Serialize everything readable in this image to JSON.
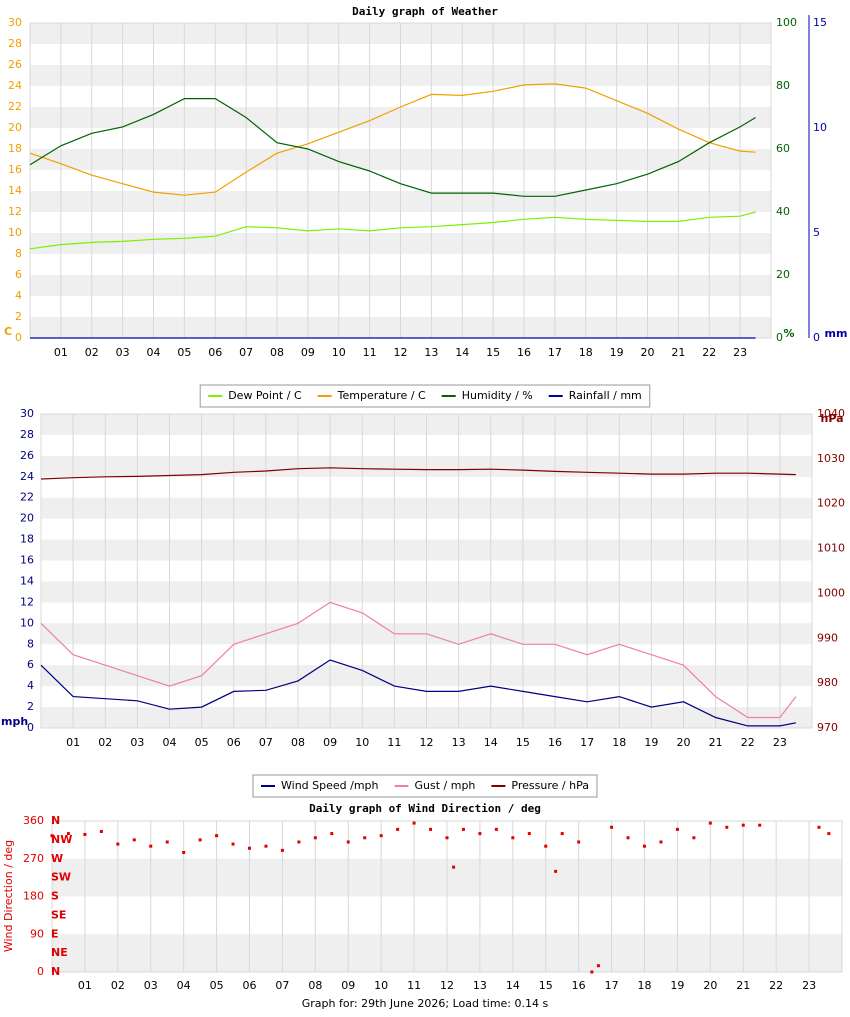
{
  "footer": "Graph for: 29th June 2026; Load time: 0.14 s",
  "chart_data": [
    {
      "type": "line",
      "title": "Daily graph of Weather",
      "x": [
        0,
        1,
        2,
        3,
        4,
        5,
        6,
        7,
        8,
        9,
        10,
        11,
        12,
        13,
        14,
        15,
        16,
        17,
        18,
        19,
        20,
        21,
        22,
        23,
        23.5
      ],
      "xlim": [
        0,
        24
      ],
      "xticks": [
        {
          "value": 1,
          "label": "01"
        },
        {
          "value": 2,
          "label": "02"
        },
        {
          "value": 3,
          "label": "03"
        },
        {
          "value": 4,
          "label": "04"
        },
        {
          "value": 5,
          "label": "05"
        },
        {
          "value": 6,
          "label": "06"
        },
        {
          "value": 7,
          "label": "07"
        },
        {
          "value": 8,
          "label": "08"
        },
        {
          "value": 9,
          "label": "09"
        },
        {
          "value": 10,
          "label": "10"
        },
        {
          "value": 11,
          "label": "11"
        },
        {
          "value": 12,
          "label": "12"
        },
        {
          "value": 13,
          "label": "13"
        },
        {
          "value": 14,
          "label": "14"
        },
        {
          "value": 15,
          "label": "15"
        },
        {
          "value": 16,
          "label": "16"
        },
        {
          "value": 17,
          "label": "17"
        },
        {
          "value": 18,
          "label": "18"
        },
        {
          "value": 19,
          "label": "19"
        },
        {
          "value": 20,
          "label": "20"
        },
        {
          "value": 21,
          "label": "21"
        },
        {
          "value": 22,
          "label": "22"
        },
        {
          "value": 23,
          "label": "23"
        }
      ],
      "ylim": [
        0,
        30
      ],
      "yticks": [
        0,
        2,
        4,
        6,
        8,
        10,
        12,
        14,
        16,
        18,
        20,
        22,
        24,
        26,
        28,
        30
      ],
      "ylabel": "C",
      "ycolor": "#f0a000",
      "y2lim": [
        0,
        100
      ],
      "y2ticks": [
        0,
        20,
        40,
        60,
        80,
        100
      ],
      "y2label": "%",
      "y2color": "#006400",
      "y3lim": [
        0,
        15
      ],
      "y3ticks": [
        0,
        5,
        10,
        15
      ],
      "y3label": "mm",
      "y3color": "#0000aa",
      "grid": true,
      "series": [
        {
          "name": "Dew Point / C",
          "color": "#7cf000",
          "values": [
            8.5,
            8.9,
            9.1,
            9.2,
            9.4,
            9.5,
            9.7,
            10.6,
            10.5,
            10.2,
            10.4,
            10.2,
            10.5,
            10.6,
            10.8,
            11,
            11.3,
            11.5,
            11.3,
            11.2,
            11.1,
            11.1,
            11.5,
            11.6,
            12
          ]
        },
        {
          "name": "Temperature / C",
          "color": "#f0a000",
          "values": [
            17.6,
            16.6,
            15.5,
            14.7,
            13.9,
            13.6,
            13.9,
            15.8,
            17.6,
            18.5,
            19.6,
            20.7,
            22,
            23.2,
            23.1,
            23.5,
            24.1,
            24.2,
            23.8,
            22.6,
            21.4,
            19.9,
            18.6,
            17.8,
            17.7
          ]
        },
        {
          "name": "Humidity / %",
          "color": "#006400",
          "axis": "y2",
          "values": [
            55,
            61,
            65,
            67,
            71,
            76,
            76,
            70,
            62,
            60,
            56,
            53,
            49,
            46,
            46,
            46,
            45,
            45,
            47,
            49,
            52,
            56,
            62,
            67,
            70
          ]
        },
        {
          "name": "Rainfall / mm",
          "color": "#0000aa",
          "axis": "y3",
          "values": [
            0,
            0,
            0,
            0,
            0,
            0,
            0,
            0,
            0,
            0,
            0,
            0,
            0,
            0,
            0,
            0,
            0,
            0,
            0,
            0,
            0,
            0,
            0,
            0,
            0
          ]
        }
      ]
    },
    {
      "type": "line",
      "x": [
        0,
        1,
        2,
        3,
        4,
        5,
        6,
        7,
        8,
        9,
        10,
        11,
        12,
        13,
        14,
        15,
        16,
        17,
        18,
        19,
        20,
        21,
        22,
        23,
        23.5
      ],
      "xlim": [
        0,
        24
      ],
      "xticks": [
        {
          "value": 1,
          "label": "01"
        },
        {
          "value": 2,
          "label": "02"
        },
        {
          "value": 3,
          "label": "03"
        },
        {
          "value": 4,
          "label": "04"
        },
        {
          "value": 5,
          "label": "05"
        },
        {
          "value": 6,
          "label": "06"
        },
        {
          "value": 7,
          "label": "07"
        },
        {
          "value": 8,
          "label": "08"
        },
        {
          "value": 9,
          "label": "09"
        },
        {
          "value": 10,
          "label": "10"
        },
        {
          "value": 11,
          "label": "11"
        },
        {
          "value": 12,
          "label": "12"
        },
        {
          "value": 13,
          "label": "13"
        },
        {
          "value": 14,
          "label": "14"
        },
        {
          "value": 15,
          "label": "15"
        },
        {
          "value": 16,
          "label": "16"
        },
        {
          "value": 17,
          "label": "17"
        },
        {
          "value": 18,
          "label": "18"
        },
        {
          "value": 19,
          "label": "19"
        },
        {
          "value": 20,
          "label": "20"
        },
        {
          "value": 21,
          "label": "21"
        },
        {
          "value": 22,
          "label": "22"
        },
        {
          "value": 23,
          "label": "23"
        }
      ],
      "ylim": [
        0,
        30
      ],
      "yticks": [
        0,
        2,
        4,
        6,
        8,
        10,
        12,
        14,
        16,
        18,
        20,
        22,
        24,
        26,
        28,
        30
      ],
      "ylabel": "mph",
      "ycolor": "#000080",
      "y2lim": [
        970,
        1040
      ],
      "y2ticks": [
        970,
        980,
        990,
        1000,
        1010,
        1020,
        1030,
        1040
      ],
      "y2label": "hPa",
      "y2color": "#800000",
      "grid": true,
      "series": [
        {
          "name": "Wind Speed /mph",
          "color": "#000080",
          "values": [
            6,
            3,
            2.8,
            2.6,
            1.8,
            2,
            3.5,
            3.6,
            4.5,
            6.5,
            5.5,
            4,
            3.5,
            3.5,
            4,
            3.5,
            3,
            2.5,
            3,
            2,
            2.5,
            1,
            0.2,
            0.2,
            0.5
          ]
        },
        {
          "name": "Gust / mph",
          "color": "#f080a0",
          "values": [
            10,
            7,
            6,
            5,
            4,
            5,
            8,
            9,
            10,
            12,
            11,
            9,
            9,
            8,
            9,
            8,
            8,
            7,
            8,
            7,
            6,
            3,
            1,
            1,
            3
          ]
        },
        {
          "name": "Pressure / hPa",
          "color": "#800000",
          "axis": "y2",
          "values": [
            1025.5,
            1025.8,
            1026,
            1026.1,
            1026.3,
            1026.5,
            1027,
            1027.3,
            1027.8,
            1028,
            1027.8,
            1027.7,
            1027.6,
            1027.6,
            1027.7,
            1027.5,
            1027.2,
            1027,
            1026.8,
            1026.6,
            1026.6,
            1026.8,
            1026.8,
            1026.6,
            1026.5
          ]
        }
      ]
    },
    {
      "type": "scatter",
      "title": "Daily graph of Wind Direction / deg",
      "x": [
        0,
        0.5,
        1,
        1.5,
        2,
        2.5,
        3,
        3.5,
        4,
        4.5,
        5,
        5.5,
        6,
        6.5,
        7,
        7.5,
        8,
        8.5,
        9,
        9.5,
        10,
        10.5,
        11,
        11.5,
        12,
        12.2,
        12.5,
        13,
        13.5,
        14,
        14.5,
        15,
        15.3,
        15.5,
        16,
        16.4,
        16.6,
        17,
        17.5,
        18,
        18.5,
        19,
        19.5,
        20,
        20.5,
        21,
        21.5,
        23.3,
        23.6
      ],
      "values": [
        325,
        330,
        328,
        335,
        305,
        315,
        300,
        310,
        285,
        315,
        325,
        305,
        295,
        300,
        290,
        310,
        320,
        330,
        310,
        320,
        325,
        340,
        355,
        340,
        320,
        250,
        340,
        330,
        340,
        320,
        330,
        300,
        240,
        330,
        310,
        0,
        15,
        345,
        320,
        300,
        310,
        340,
        320,
        355,
        345,
        350,
        350,
        345,
        330
      ],
      "color": "#e00000",
      "xlim": [
        0,
        24
      ],
      "xticks": [
        {
          "value": 1,
          "label": "01"
        },
        {
          "value": 2,
          "label": "02"
        },
        {
          "value": 3,
          "label": "03"
        },
        {
          "value": 4,
          "label": "04"
        },
        {
          "value": 5,
          "label": "05"
        },
        {
          "value": 6,
          "label": "06"
        },
        {
          "value": 7,
          "label": "07"
        },
        {
          "value": 8,
          "label": "08"
        },
        {
          "value": 9,
          "label": "09"
        },
        {
          "value": 10,
          "label": "10"
        },
        {
          "value": 11,
          "label": "11"
        },
        {
          "value": 12,
          "label": "12"
        },
        {
          "value": 13,
          "label": "13"
        },
        {
          "value": 14,
          "label": "14"
        },
        {
          "value": 15,
          "label": "15"
        },
        {
          "value": 16,
          "label": "16"
        },
        {
          "value": 17,
          "label": "17"
        },
        {
          "value": 18,
          "label": "18"
        },
        {
          "value": 19,
          "label": "19"
        },
        {
          "value": 20,
          "label": "20"
        },
        {
          "value": 21,
          "label": "21"
        },
        {
          "value": 22,
          "label": "22"
        },
        {
          "value": 23,
          "label": "23"
        }
      ],
      "ylim": [
        0,
        360
      ],
      "yticks": [
        0,
        90,
        180,
        270,
        360
      ],
      "ylabel": "Wind Direction / deg",
      "ycolor": "#e00000",
      "compass_ticks": [
        {
          "value": 0,
          "label": "N"
        },
        {
          "value": 45,
          "label": "NE"
        },
        {
          "value": 90,
          "label": "E"
        },
        {
          "value": 135,
          "label": "SE"
        },
        {
          "value": 180,
          "label": "S"
        },
        {
          "value": 225,
          "label": "SW"
        },
        {
          "value": 270,
          "label": "W"
        },
        {
          "value": 315,
          "label": "NW"
        },
        {
          "value": 360,
          "label": "N"
        }
      ],
      "grid": true
    }
  ]
}
